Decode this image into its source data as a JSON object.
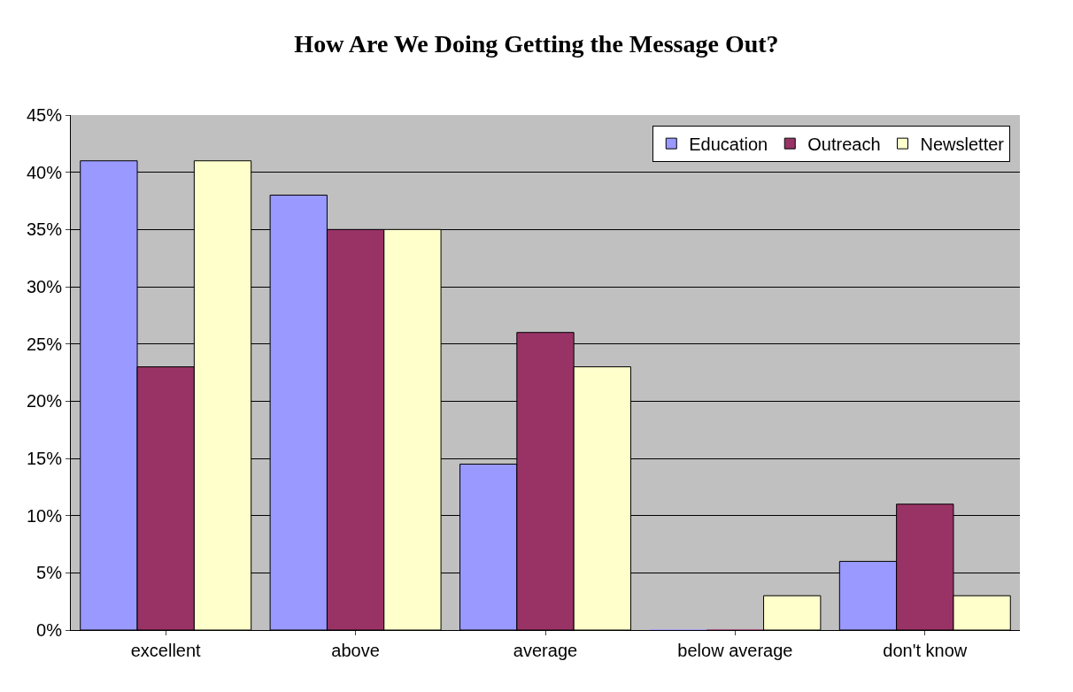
{
  "chart_data": {
    "type": "bar",
    "title": "How Are We Doing Getting the Message Out?",
    "categories": [
      "excellent",
      "above",
      "average",
      "below average",
      "don't know"
    ],
    "series": [
      {
        "name": "Education",
        "color": "#9999ff",
        "values": [
          41,
          38,
          14.5,
          0,
          6
        ]
      },
      {
        "name": "Outreach",
        "color": "#993366",
        "values": [
          23,
          35,
          26,
          0,
          11
        ]
      },
      {
        "name": "Newsletter",
        "color": "#ffffcc",
        "values": [
          41,
          35,
          23,
          3,
          3
        ]
      }
    ],
    "ylim": [
      0,
      45
    ],
    "yticks": [
      {
        "value": 0,
        "label": "0%"
      },
      {
        "value": 5,
        "label": "5%"
      },
      {
        "value": 10,
        "label": "10%"
      },
      {
        "value": 15,
        "label": "15%"
      },
      {
        "value": 20,
        "label": "20%"
      },
      {
        "value": 25,
        "label": "25%"
      },
      {
        "value": 30,
        "label": "30%"
      },
      {
        "value": 35,
        "label": "35%"
      },
      {
        "value": 40,
        "label": "40%"
      },
      {
        "value": 45,
        "label": "45%"
      }
    ],
    "grid": "y",
    "legend": "top right"
  }
}
